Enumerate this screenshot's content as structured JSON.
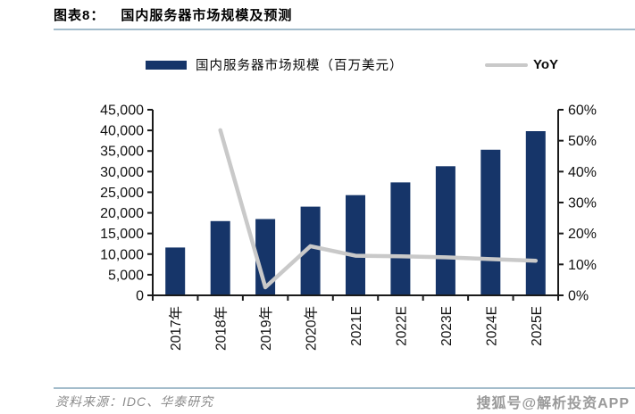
{
  "header": {
    "prefix": "图表8：",
    "title": "国内服务器市场规模及预测"
  },
  "legend": {
    "bar_label": "国内服务器市场规模（百万美元）",
    "line_label": "YoY"
  },
  "chart_data": {
    "type": "bar",
    "subtype": "combo-bar-line",
    "title": "国内服务器市场规模及预测",
    "categories": [
      "2017年",
      "2018年",
      "2019年",
      "2020年",
      "2021E",
      "2022E",
      "2023E",
      "2024E",
      "2025E"
    ],
    "series": [
      {
        "name": "国内服务器市场规模（百万美元）",
        "type": "bar",
        "axis": "left",
        "values": [
          11600,
          18000,
          18500,
          21500,
          24300,
          27400,
          31300,
          35300,
          39800
        ]
      },
      {
        "name": "YoY",
        "type": "line",
        "axis": "right",
        "values": [
          null,
          53.4,
          2.6,
          15.9,
          12.8,
          12.6,
          12.3,
          11.7,
          11.2
        ]
      }
    ],
    "left_axis": {
      "min": 0,
      "max": 45000,
      "step": 5000,
      "ticks": [
        "45,000",
        "40,000",
        "35,000",
        "30,000",
        "25,000",
        "20,000",
        "15,000",
        "10,000",
        "5,000",
        "0"
      ]
    },
    "right_axis": {
      "min": 0,
      "max": 60,
      "step": 10,
      "ticks": [
        "60%",
        "50%",
        "40%",
        "30%",
        "20%",
        "10%",
        "0%"
      ]
    },
    "grid": false,
    "legend_position": "top"
  },
  "footer": {
    "source": "资料来源：IDC、华泰研究",
    "watermark": "搜狐号@解析投资APP"
  },
  "colors": {
    "bar": "#163569",
    "line": "#c9c9c9",
    "axis": "#1a1a1a",
    "rule": "#a3bccb",
    "source_text": "#8c8c8c",
    "watermark": "#9a9a9a"
  }
}
